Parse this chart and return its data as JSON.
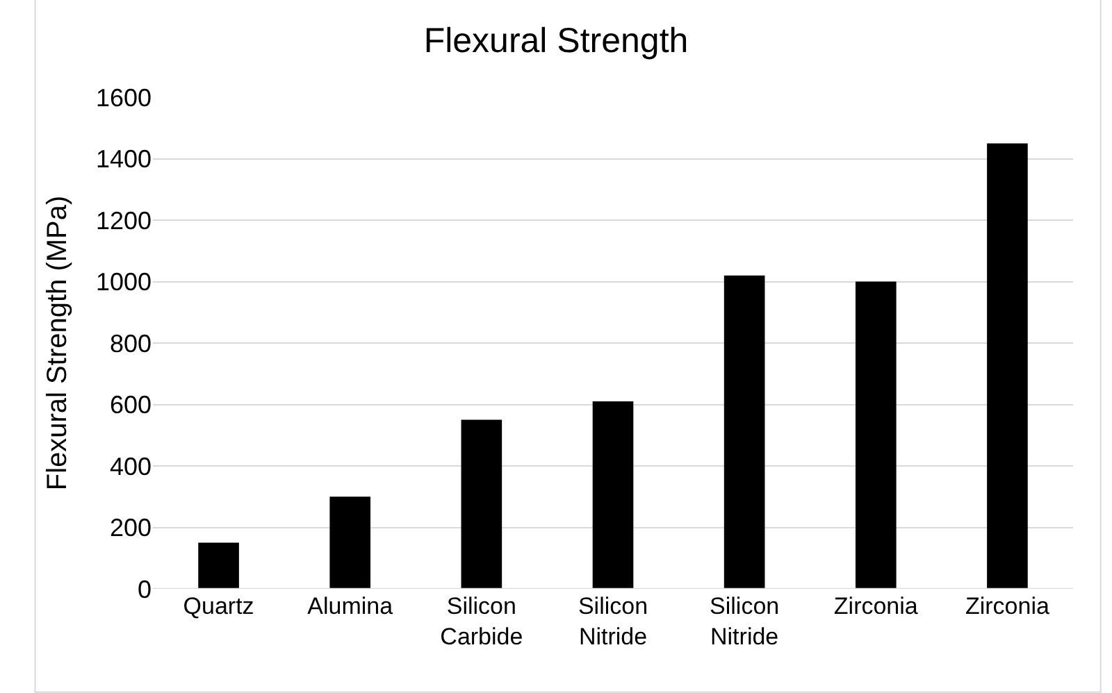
{
  "chart_data": {
    "type": "bar",
    "title": "Flexural Strength",
    "ylabel": "Flexural Strength (MPa)",
    "categories": [
      "Quartz",
      "Alumina",
      "Silicon\nCarbide",
      "Silicon\nNitride",
      "Silicon\nNitride",
      "Zirconia",
      "Zirconia"
    ],
    "values": [
      150,
      300,
      550,
      610,
      1020,
      1000,
      1450
    ],
    "color": "#000000",
    "ylim": [
      0,
      1600
    ],
    "yticks": [
      0,
      200,
      400,
      600,
      800,
      1000,
      1200,
      1400,
      1600
    ],
    "grid": "y",
    "legend": false
  }
}
